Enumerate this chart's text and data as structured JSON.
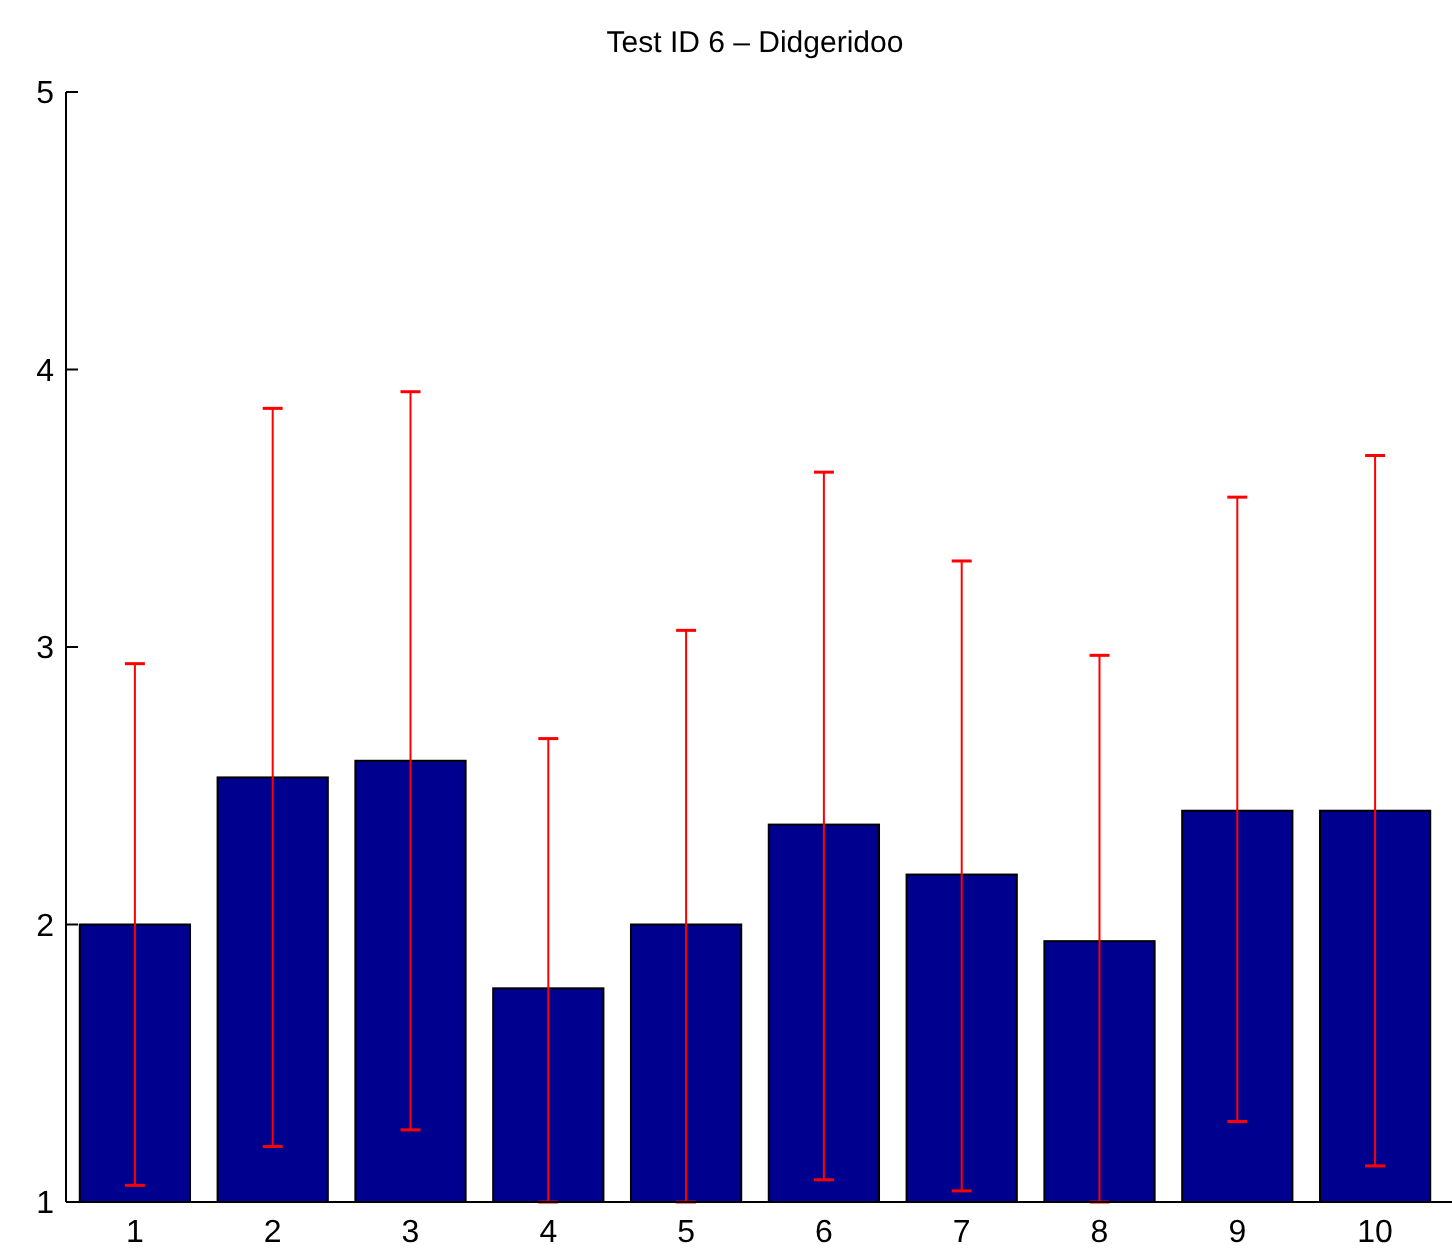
{
  "chart_data": {
    "type": "bar",
    "title": "Test ID 6 – Didgeridoo",
    "categories": [
      "1",
      "2",
      "3",
      "4",
      "5",
      "6",
      "7",
      "8",
      "9",
      "10"
    ],
    "values": [
      2.0,
      2.53,
      2.59,
      1.77,
      2.0,
      2.36,
      2.18,
      1.94,
      2.41,
      2.41
    ],
    "errors": [
      [
        1.06,
        2.94
      ],
      [
        1.2,
        3.86
      ],
      [
        1.26,
        3.92
      ],
      [
        1,
        2.67
      ],
      [
        1,
        3.06
      ],
      [
        1.08,
        3.63
      ],
      [
        1.04,
        3.31
      ],
      [
        1,
        2.97
      ],
      [
        1.29,
        3.54
      ],
      [
        1.13,
        3.69
      ]
    ],
    "color": "#00008f",
    "ylim": [
      1,
      5
    ],
    "yticks": [
      1,
      2,
      3,
      4,
      5
    ],
    "grid": false
  }
}
